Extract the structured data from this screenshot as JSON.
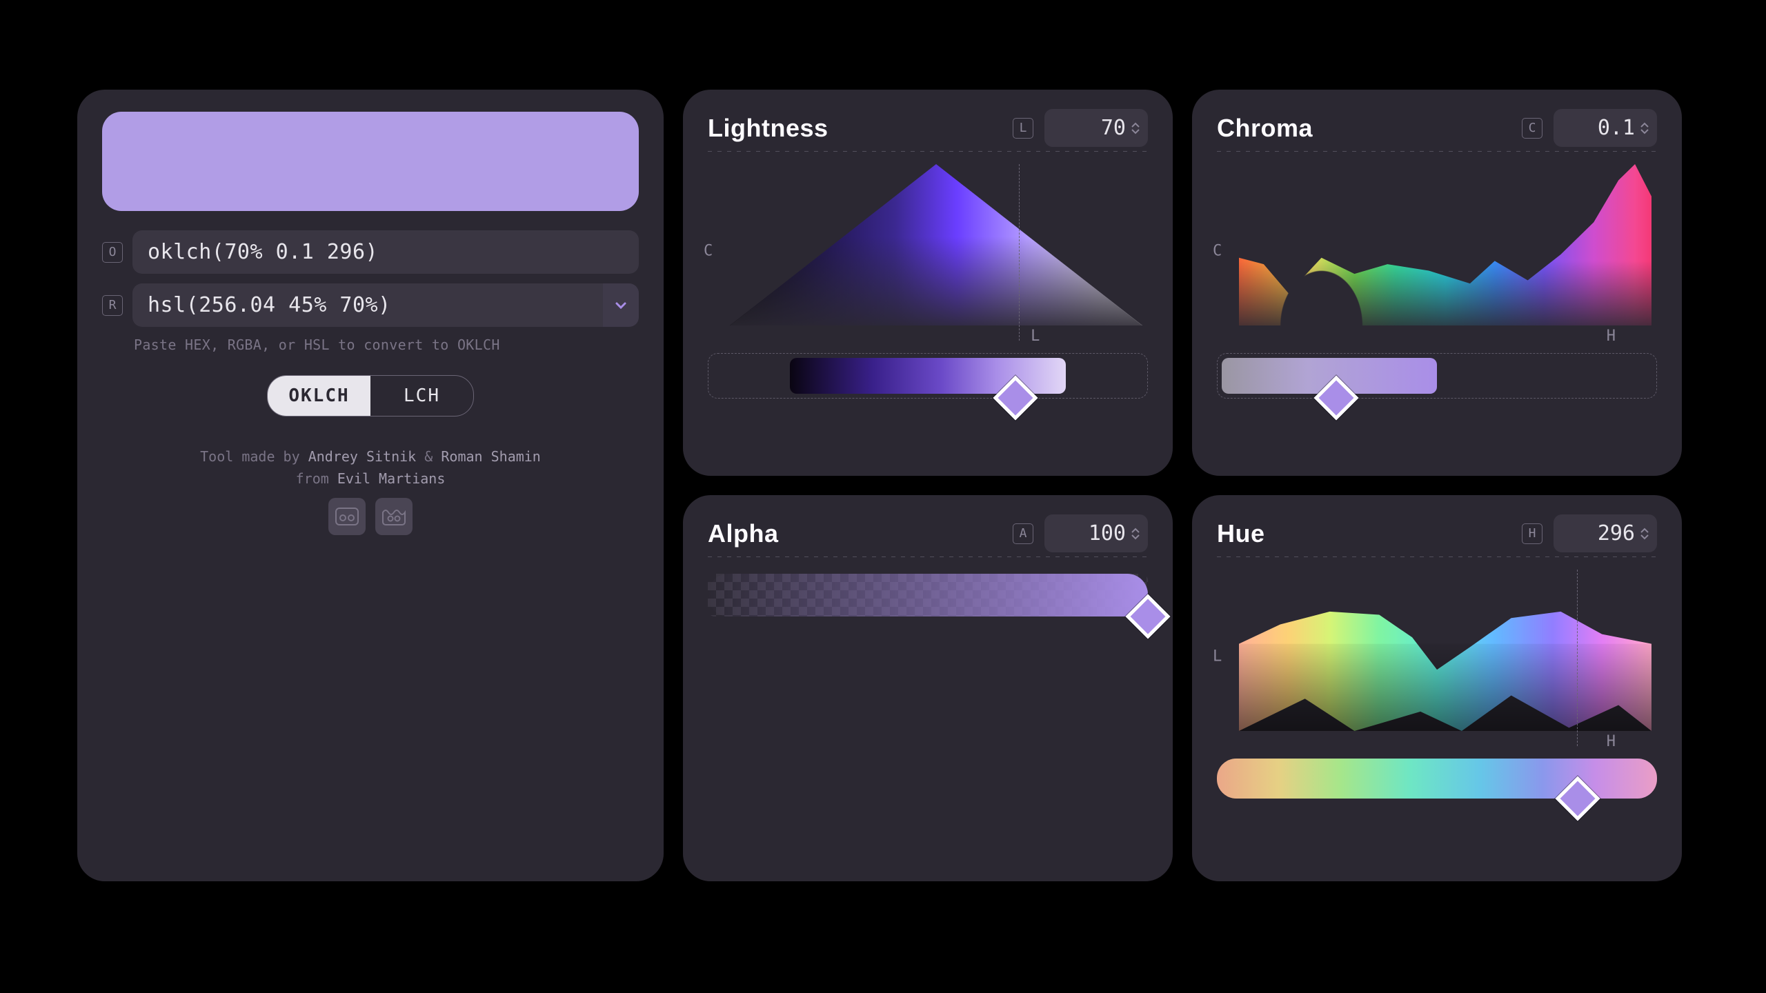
{
  "colors": {
    "swatch": "#b19de6",
    "panel_bg": "#2b2832",
    "input_bg": "#3a3642",
    "text": "#e8e6ec",
    "muted": "#7a7486",
    "handle_fill": "#a98ee8",
    "handle_border": "#ffffff"
  },
  "main": {
    "oklch_key": "O",
    "oklch_value": "oklch(70% 0.1 296)",
    "rgb_key": "R",
    "rgb_value": "hsl(256.04 45% 70%)",
    "hint": "Paste HEX, RGBA, or HSL to convert to OKLCH",
    "toggle": {
      "a": "OKLCH",
      "b": "LCH",
      "active": "a"
    },
    "credit_prefix": "Tool made by ",
    "credit_a": "Andrey Sitnik",
    "credit_amp": " & ",
    "credit_b": "Roman Shamin",
    "credit_from": "from ",
    "credit_org": "Evil Martians"
  },
  "lightness": {
    "title": "Lightness",
    "key": "L",
    "value": "70",
    "axis_y": "C",
    "axis_x": "L",
    "slider_pos_pct": 70,
    "cursor_pct": 70
  },
  "chroma": {
    "title": "Chroma",
    "key": "C",
    "value": "0.1",
    "axis_y": "C",
    "axis_x": "H",
    "slider_pos_pct": 27
  },
  "alpha": {
    "title": "Alpha",
    "key": "A",
    "value": "100",
    "slider_pos_pct": 100
  },
  "hue": {
    "title": "Hue",
    "key": "H",
    "value": "296",
    "axis_y": "L",
    "axis_x": "H",
    "slider_pos_pct": 82,
    "cursor_pct": 82
  }
}
